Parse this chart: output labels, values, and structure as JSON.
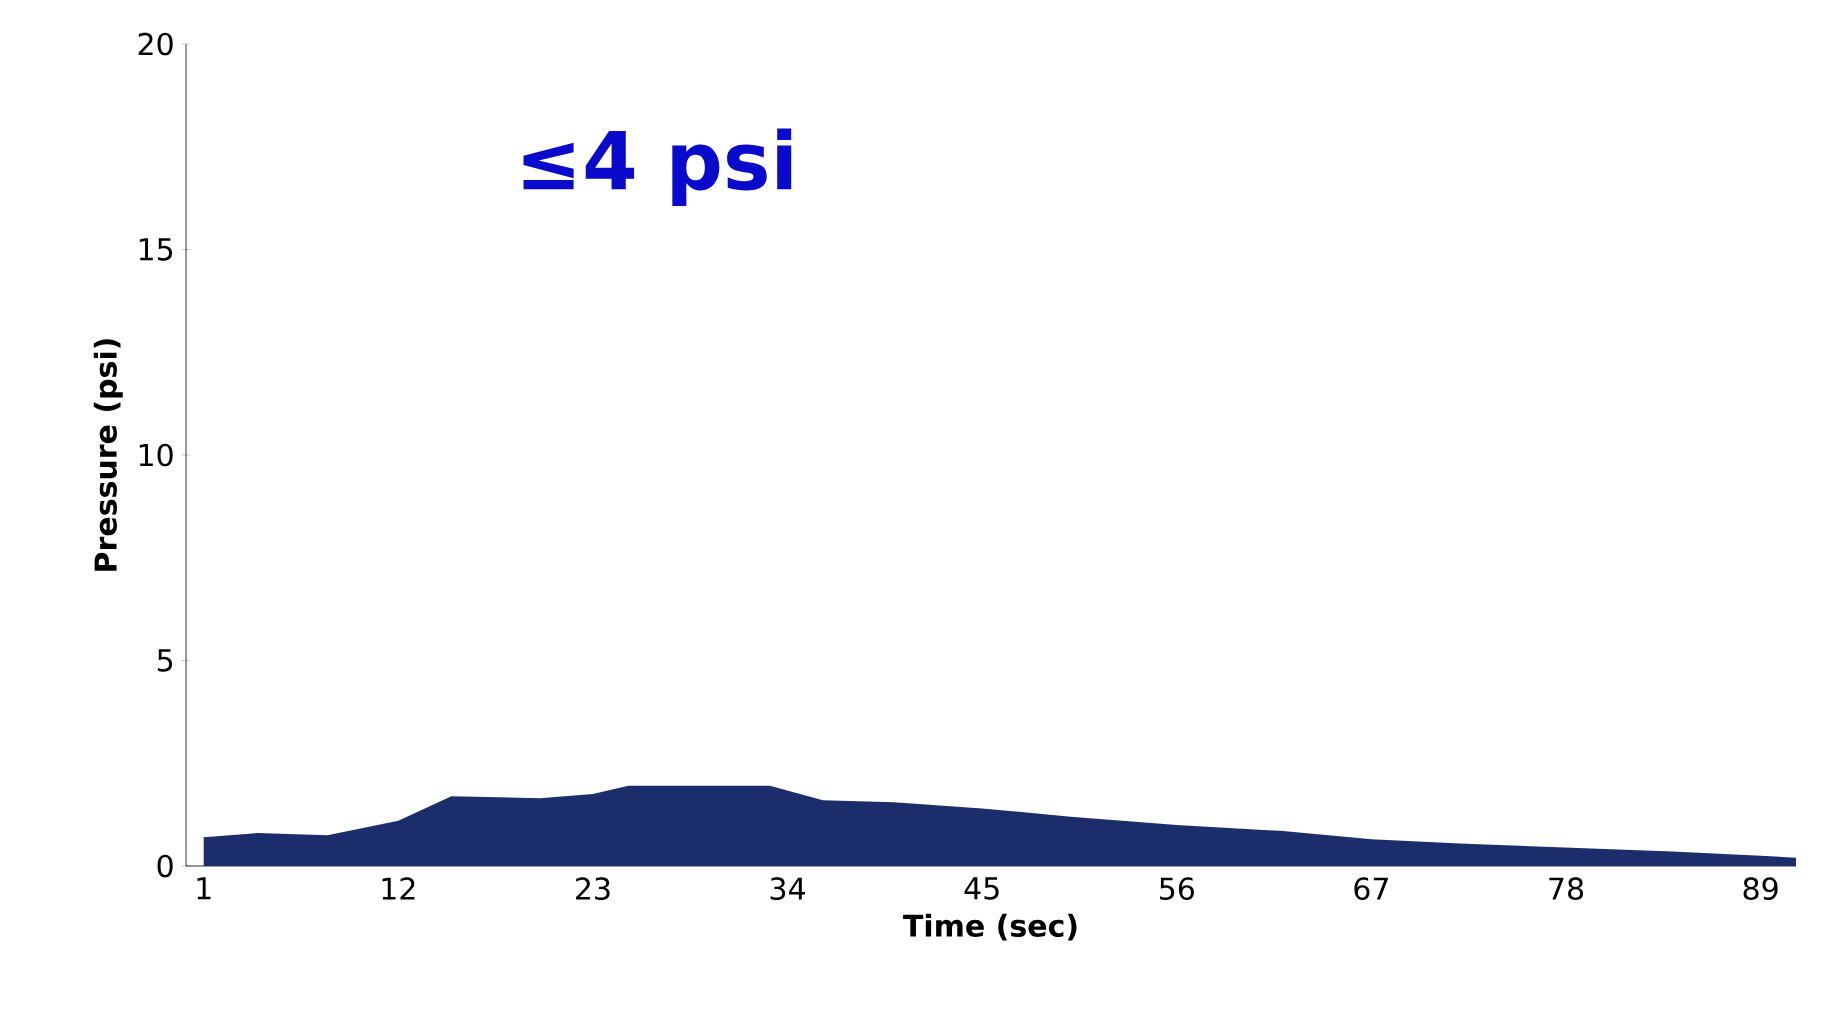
{
  "chart_data": {
    "type": "area",
    "xlabel": "Time (sec)",
    "ylabel": "Pressure (psi)",
    "annotations": [
      "≤4 psi"
    ],
    "x": [
      1,
      4,
      8,
      12,
      15,
      20,
      23,
      25,
      33,
      36,
      40,
      45,
      50,
      56,
      62,
      67,
      72,
      78,
      84,
      89,
      91
    ],
    "series": [
      {
        "color": "#1c2d6b",
        "values": [
          0.7,
          0.8,
          0.75,
          1.1,
          1.7,
          1.65,
          1.75,
          1.95,
          1.95,
          1.6,
          1.55,
          1.4,
          1.2,
          1.0,
          0.85,
          0.65,
          0.55,
          0.45,
          0.35,
          0.25,
          0.2
        ]
      }
    ],
    "xlim": [
      0,
      91
    ],
    "xticks": [
      1,
      12,
      23,
      34,
      45,
      56,
      67,
      78,
      89
    ],
    "ylim": [
      0,
      20
    ],
    "yticks": [
      0,
      5,
      10,
      15,
      20
    ],
    "grid": false
  }
}
